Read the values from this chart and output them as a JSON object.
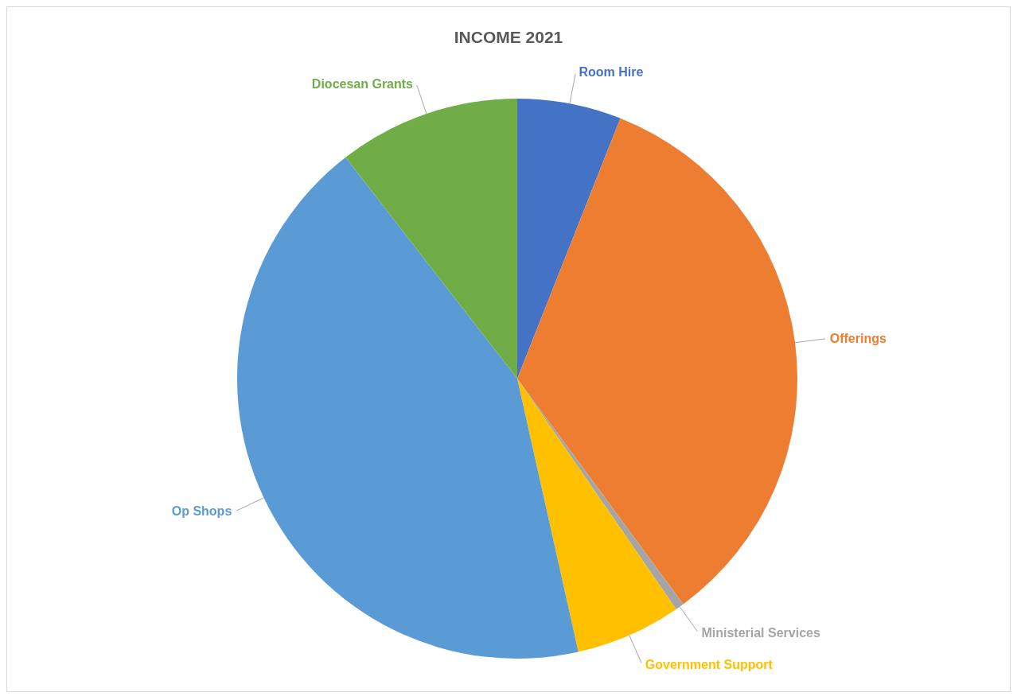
{
  "chart_data": {
    "type": "pie",
    "title": "INCOME 2021",
    "categories": [
      "Room Hire",
      "Offerings",
      "Ministerial Services",
      "Government Support",
      "Op Shops",
      "Diocesan Grants"
    ],
    "values": [
      6.0,
      33.9,
      0.5,
      6.1,
      43.0,
      10.5
    ],
    "colors": [
      "#4472c4",
      "#ed7d31",
      "#a5a5a5",
      "#ffc000",
      "#5b9bd5",
      "#70ad47"
    ]
  }
}
